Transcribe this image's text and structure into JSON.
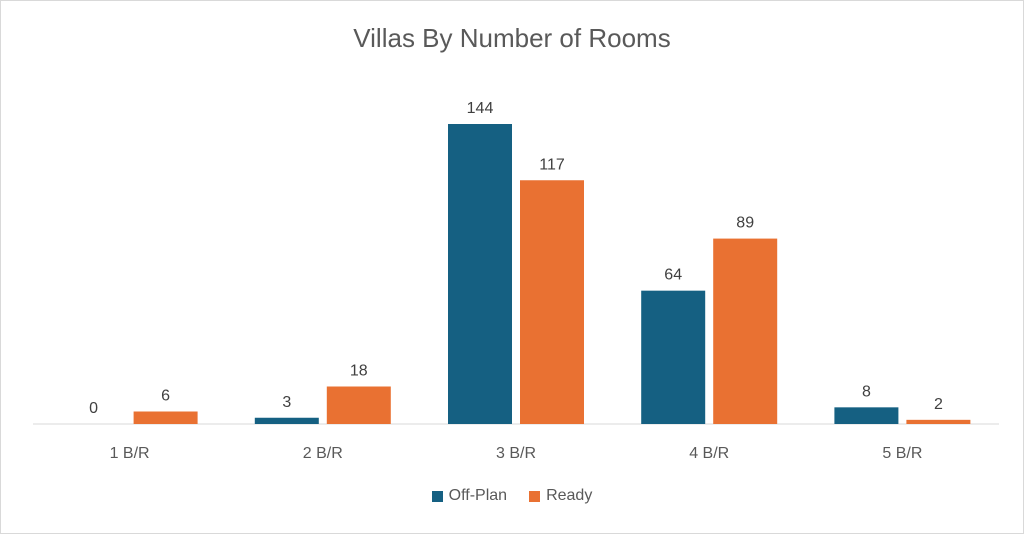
{
  "chart_data": {
    "type": "bar",
    "title": "Villas By Number of Rooms",
    "xlabel": "",
    "ylabel": "",
    "categories": [
      "1 B/R",
      "2 B/R",
      "3 B/R",
      "4 B/R",
      "5 B/R"
    ],
    "series": [
      {
        "name": "Off-Plan",
        "color": "#156082",
        "values": [
          0,
          3,
          144,
          64,
          8
        ]
      },
      {
        "name": "Ready",
        "color": "#E97132",
        "values": [
          6,
          18,
          117,
          89,
          2
        ]
      }
    ],
    "ylim": [
      0,
      144
    ],
    "grid": false,
    "legend_position": "bottom"
  }
}
